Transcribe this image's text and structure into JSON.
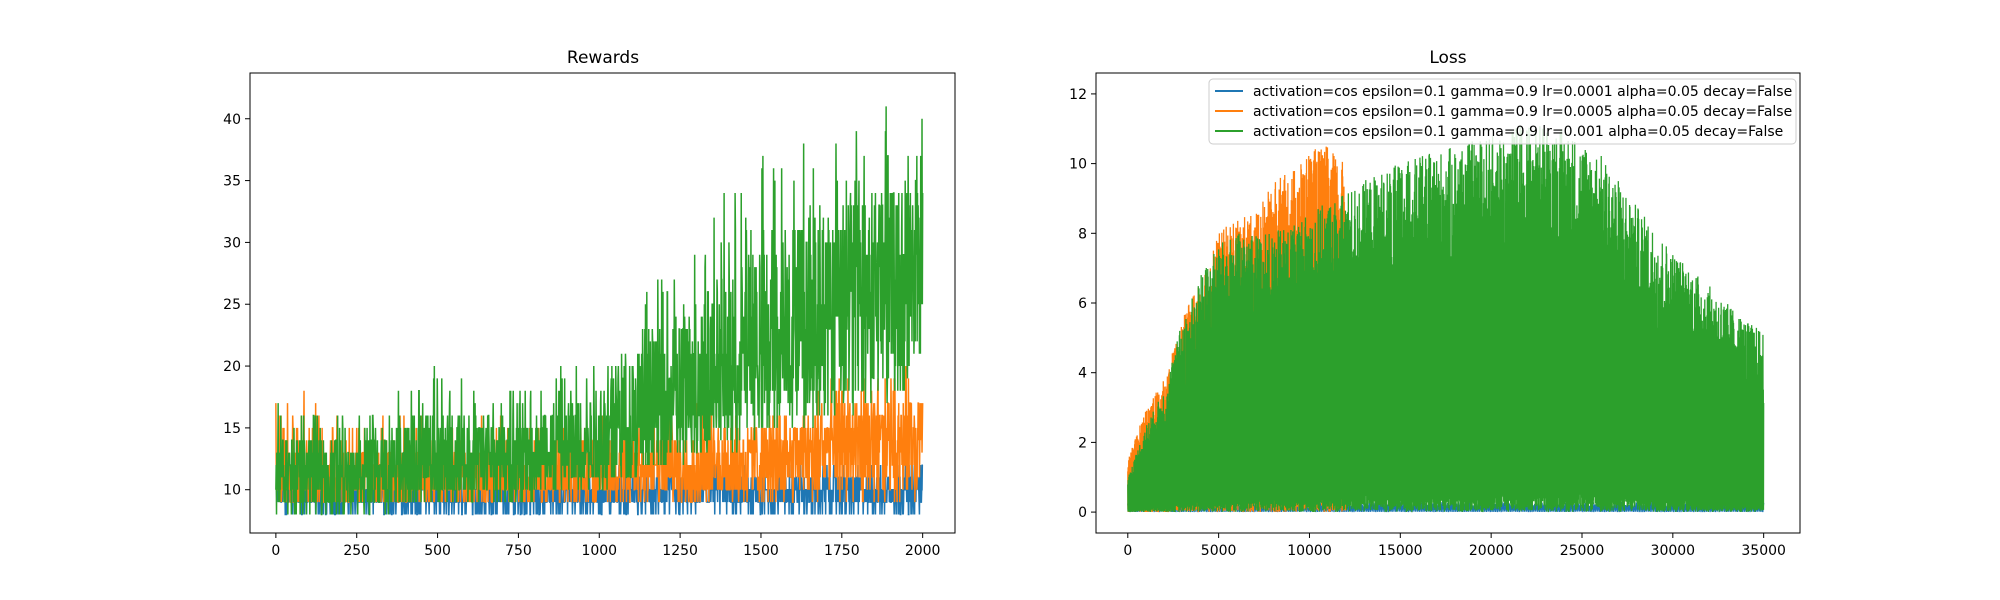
{
  "colors": {
    "lr_0001": "#1f77b4",
    "lr_0005": "#ff7f0e",
    "lr_001": "#2ca02c"
  },
  "chart_data": [
    {
      "type": "line",
      "title": "Rewards",
      "xlabel": "",
      "ylabel": "",
      "xlim": [
        -80,
        2100
      ],
      "ylim": [
        6.5,
        43.7
      ],
      "xticks": [
        0,
        250,
        500,
        750,
        1000,
        1250,
        1500,
        1750,
        2000
      ],
      "yticks": [
        10,
        15,
        20,
        25,
        30,
        35,
        40
      ],
      "grid": false,
      "series": [
        {
          "name": "activation=cos epsilon=0.1 gamma=0.9 lr=0.0001 alpha=0.05 decay=False",
          "x": [
            0,
            250,
            500,
            750,
            1000,
            1250,
            1500,
            1750,
            2000
          ],
          "mean": [
            9.5,
            9.5,
            9.5,
            9.5,
            9.6,
            9.7,
            9.8,
            9.9,
            10.0
          ],
          "low": [
            8,
            8,
            8,
            8,
            8,
            8,
            8,
            8,
            8
          ],
          "high": [
            11,
            11,
            11,
            11,
            12,
            12,
            12,
            12,
            13
          ]
        },
        {
          "name": "activation=cos epsilon=0.1 gamma=0.9 lr=0.0005 alpha=0.05 decay=False",
          "x": [
            0,
            250,
            500,
            750,
            1000,
            1250,
            1500,
            1750,
            2000
          ],
          "mean": [
            10.5,
            10.5,
            10.6,
            10.8,
            11.2,
            11.8,
            12.5,
            13.5,
            14.5
          ],
          "low": [
            9,
            9,
            9,
            9,
            9,
            9,
            9,
            9,
            9
          ],
          "high": [
            19,
            16,
            16,
            16,
            16,
            17,
            17,
            19,
            20
          ]
        },
        {
          "name": "activation=cos epsilon=0.1 gamma=0.9 lr=0.001 alpha=0.05 decay=False",
          "x": [
            0,
            250,
            500,
            750,
            1000,
            1250,
            1500,
            1750,
            2000
          ],
          "mean": [
            11,
            11.5,
            12,
            12.5,
            14,
            17,
            21,
            25,
            28
          ],
          "low": [
            8,
            8,
            9,
            9,
            10,
            12,
            14,
            16,
            18
          ],
          "high": [
            17,
            16,
            20,
            18,
            22,
            30,
            37,
            42,
            40
          ]
        }
      ]
    },
    {
      "type": "line",
      "title": "Loss",
      "xlabel": "",
      "ylabel": "",
      "xlim": [
        -1750,
        37000
      ],
      "ylim": [
        -0.6,
        12.6
      ],
      "xticks": [
        0,
        5000,
        10000,
        15000,
        20000,
        25000,
        30000,
        35000
      ],
      "yticks": [
        0,
        2,
        4,
        6,
        8,
        10,
        12
      ],
      "grid": false,
      "legend": "top-right",
      "series": [
        {
          "name": "activation=cos epsilon=0.1 gamma=0.9 lr=0.0001 alpha=0.05 decay=False",
          "x": [
            0,
            35000
          ],
          "envelope": [
            0.3,
            0.3
          ]
        },
        {
          "name": "activation=cos epsilon=0.1 gamma=0.9 lr=0.0005 alpha=0.05 decay=False",
          "x": [
            0,
            1000,
            2000,
            3000,
            4000,
            5000,
            6000,
            7000,
            8000,
            9000,
            10000,
            11000,
            12000
          ],
          "envelope": [
            1.5,
            3.0,
            3.8,
            5.5,
            6.8,
            8.0,
            8.5,
            8.5,
            9.5,
            9.8,
            10.4,
            10.5,
            10.0
          ]
        },
        {
          "name": "activation=cos epsilon=0.1 gamma=0.9 lr=0.001 alpha=0.05 decay=False",
          "x": [
            0,
            1000,
            2000,
            3000,
            4000,
            5000,
            6000,
            8000,
            10000,
            12000,
            14000,
            16000,
            18000,
            20000,
            22000,
            24000,
            26000,
            28000,
            30000,
            32000,
            34000,
            35000
          ],
          "envelope": [
            1.0,
            2.5,
            3.5,
            5.5,
            6.8,
            7.7,
            8.0,
            8.0,
            8.6,
            9.2,
            9.8,
            10.2,
            10.5,
            10.8,
            11.2,
            11.0,
            10.3,
            8.8,
            7.5,
            6.5,
            5.5,
            5.2
          ]
        }
      ]
    }
  ]
}
